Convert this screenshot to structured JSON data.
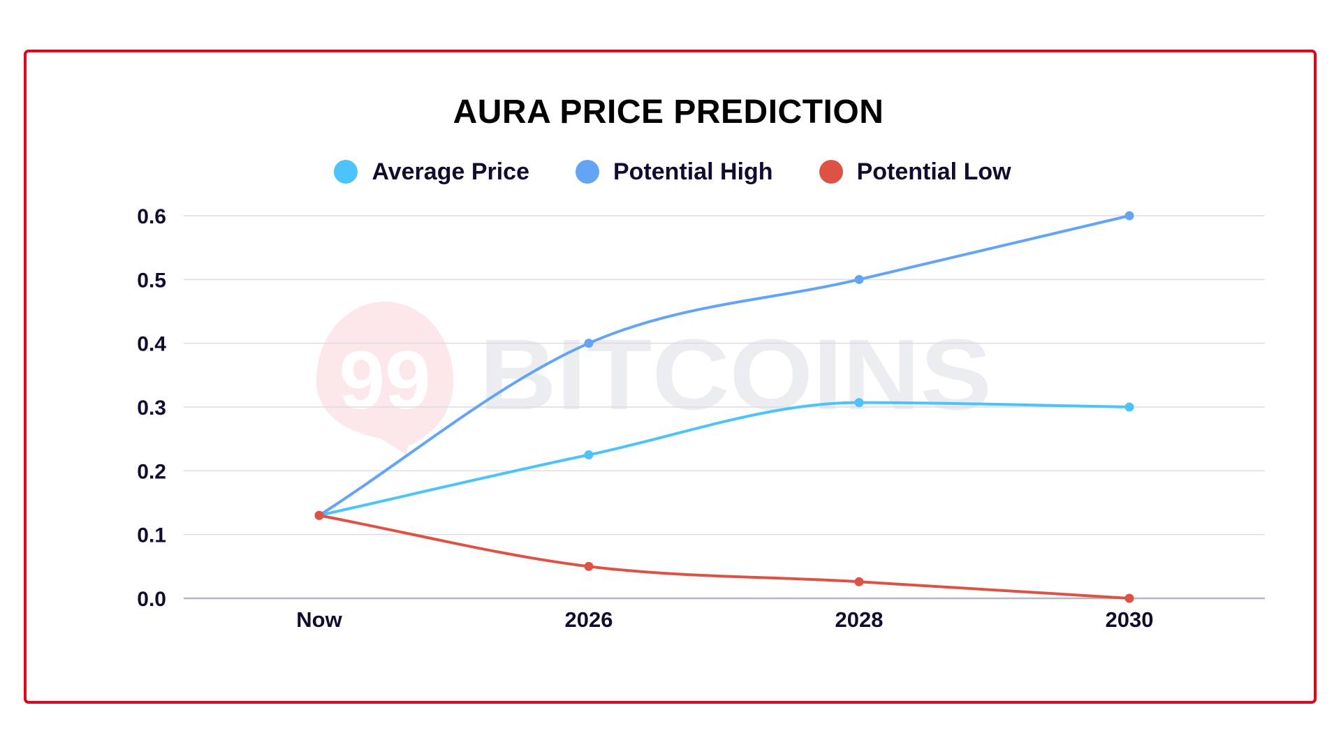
{
  "title": "AURA PRICE PREDICTION",
  "legend": [
    {
      "label": "Average Price",
      "color": "#4CC3FA"
    },
    {
      "label": "Potential High",
      "color": "#64A4F5"
    },
    {
      "label": "Potential Low",
      "color": "#DE5246"
    }
  ],
  "watermark": {
    "badge": "99",
    "text": "BITCOINS"
  },
  "colors": {
    "frame": "#E2001A",
    "grid": "#DCDCE2",
    "axis": "#B8B8C2",
    "text": "#120B30"
  },
  "chart_data": {
    "type": "line",
    "title": "AURA PRICE PREDICTION",
    "xlabel": "",
    "ylabel": "",
    "categories": [
      "Now",
      "2026",
      "2028",
      "2030"
    ],
    "series": [
      {
        "name": "Average Price",
        "color": "#4CC3FA",
        "values": [
          0.13,
          0.225,
          0.307,
          0.3
        ]
      },
      {
        "name": "Potential High",
        "color": "#64A4F5",
        "values": [
          0.13,
          0.4,
          0.5,
          0.6
        ]
      },
      {
        "name": "Potential Low",
        "color": "#DE5246",
        "values": [
          0.13,
          0.05,
          0.026,
          0.0
        ]
      }
    ],
    "yticks": [
      "0.0",
      "0.1",
      "0.2",
      "0.3",
      "0.4",
      "0.5",
      "0.6"
    ],
    "ylim": [
      0,
      0.6
    ],
    "grid": true,
    "legend_position": "top",
    "smooth": true
  }
}
